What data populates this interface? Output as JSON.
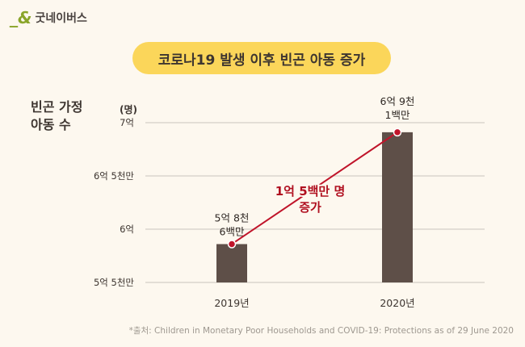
{
  "logo": {
    "text": "굿네이버스"
  },
  "title": "코로나19 발생 이후 빈곤 아동 증가",
  "source": "*출처: Children in Monetary Poor Households and COVID-19: Protections as of 29 June 2020",
  "chart_data": {
    "type": "bar",
    "ylabel": "빈곤 가정\n아동 수",
    "yunit": "(명)",
    "categories": [
      "2019년",
      "2020년"
    ],
    "values": [
      586000000,
      691000000
    ],
    "data_labels": [
      [
        "5억 8천",
        "6백만"
      ],
      [
        "6억 9천",
        "1백만"
      ]
    ],
    "yticks": [
      {
        "value": 550000000,
        "label": "5억 5천만"
      },
      {
        "value": 600000000,
        "label": "6억"
      },
      {
        "value": 650000000,
        "label": "6억 5천만"
      },
      {
        "value": 700000000,
        "label": "7억"
      }
    ],
    "ylim": [
      550000000,
      700000000
    ],
    "grid": true,
    "annotation": [
      "1억 5백만 명",
      "증가"
    ],
    "colors": {
      "bar": "#5e4f48",
      "line": "#c0142a",
      "annotation": "#b01020",
      "grid": "#c9c4bc"
    }
  }
}
